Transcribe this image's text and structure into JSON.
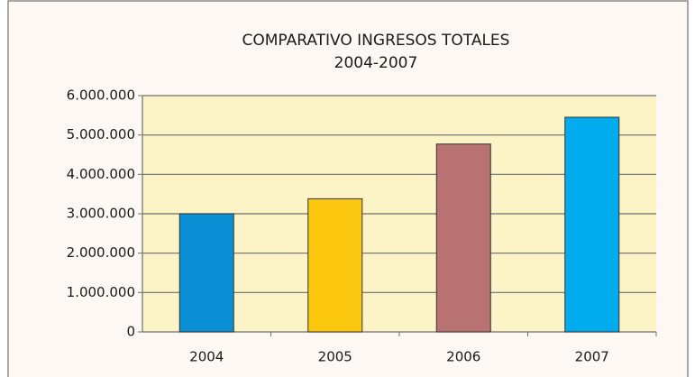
{
  "chart_data": {
    "type": "bar",
    "title": "COMPARATIVO INGRESOS TOTALES",
    "subtitle": "2004-2007",
    "categories": [
      "2004",
      "2005",
      "2006",
      "2007"
    ],
    "values": [
      3000000,
      3380000,
      4770000,
      5450000
    ],
    "colors": [
      "#0b8fd4",
      "#fcc70f",
      "#b87272",
      "#00acee"
    ],
    "ylim": [
      0,
      6000000
    ],
    "yticks": [
      0,
      {
        "value": 1000000,
        "label": "1.000.000"
      },
      {
        "value": 2000000,
        "label": "2.000.000"
      },
      {
        "value": 3000000,
        "label": "3.000.000"
      },
      {
        "value": 4000000,
        "label": "4.000.000"
      },
      {
        "value": 5000000,
        "label": "5.000.000"
      },
      {
        "value": 6000000,
        "label": "6.000.000"
      }
    ],
    "grid": true
  }
}
